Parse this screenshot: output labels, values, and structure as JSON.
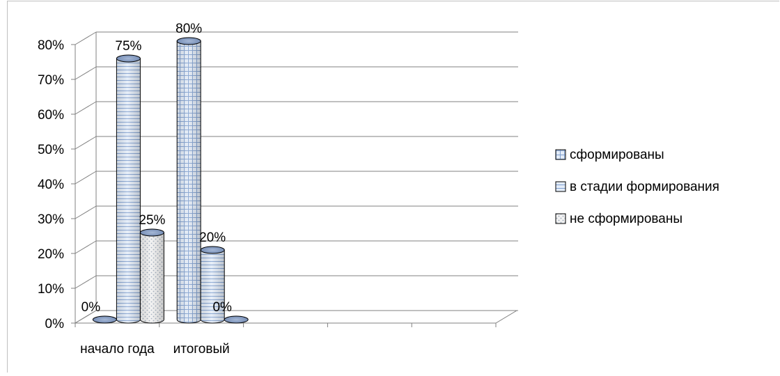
{
  "chart_data": {
    "type": "bar",
    "subtype": "3d-cylinder",
    "categories": [
      "начало года",
      "итоговый",
      "",
      "",
      ""
    ],
    "series": [
      {
        "name": "сформированы",
        "values": [
          0,
          80,
          null,
          null,
          null
        ],
        "color": "#c5d7ef",
        "pattern": "grid"
      },
      {
        "name": "в стадии формирования",
        "values": [
          75,
          20,
          null,
          null,
          null
        ],
        "color": "#c5d7ef",
        "pattern": "horizontal-lines"
      },
      {
        "name": "не сформированы",
        "values": [
          25,
          0,
          null,
          null,
          null
        ],
        "color": "#e6e6e6",
        "pattern": "dots"
      }
    ],
    "data_labels": [
      [
        "0%",
        "80%",
        "",
        "",
        ""
      ],
      [
        "75%",
        "20%",
        "",
        "",
        ""
      ],
      [
        "25%",
        "0%",
        "",
        "",
        ""
      ]
    ],
    "y_ticks": [
      "0%",
      "10%",
      "20%",
      "30%",
      "40%",
      "50%",
      "60%",
      "70%",
      "80%"
    ],
    "ylim": [
      0,
      80
    ],
    "grid": true,
    "legend_position": "right",
    "title": "",
    "xlabel": "",
    "ylabel": ""
  }
}
